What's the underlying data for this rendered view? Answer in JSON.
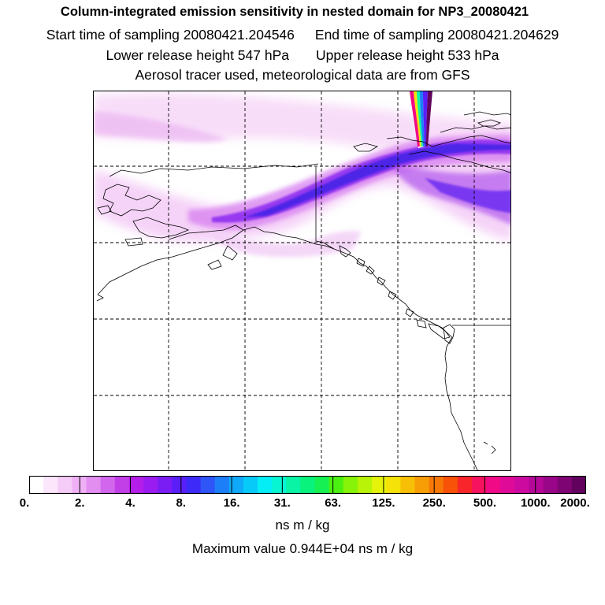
{
  "title": {
    "main": "Column-integrated emission sensitivity in nested domain for NP3_20080421",
    "start_label": "Start time of sampling 20080421.204546",
    "end_label": "End time of sampling 20080421.204629",
    "lower_label": "Lower release height  547 hPa",
    "upper_label": "Upper release height  533 hPa",
    "tracer_line": "Aerosol tracer used, meteorological data are from GFS"
  },
  "colorbar": {
    "tick_labels": [
      "0.",
      "2.",
      "4.",
      "8.",
      "16.",
      "31.",
      "63.",
      "125.",
      "250.",
      "500.",
      "1000.",
      "2000."
    ],
    "colors": [
      "#ffffff",
      "#fbe6fb",
      "#f5ccf7",
      "#f0b0f5",
      "#e28ef0",
      "#d266ec",
      "#c23fe8",
      "#b51ee8",
      "#9a1cf0",
      "#7a1cf4",
      "#5a1ef8",
      "#3e2af8",
      "#2f55f7",
      "#1c7ff7",
      "#10a8f8",
      "#08caf9",
      "#04eef6",
      "#07f5d2",
      "#0af4a6",
      "#08f27c",
      "#16f052",
      "#4cf010",
      "#86f308",
      "#b8f308",
      "#e5f30a",
      "#f5e208",
      "#f7c006",
      "#f79d06",
      "#f77806",
      "#f75208",
      "#f8262a",
      "#f6125e",
      "#f00a86",
      "#e00a98",
      "#cc0aa0",
      "#b40898",
      "#9a0688",
      "#7e0474",
      "#62025e"
    ],
    "units": "ns m / kg"
  },
  "max_value_text": "Maximum value  0.944E+04 ns m / kg"
}
